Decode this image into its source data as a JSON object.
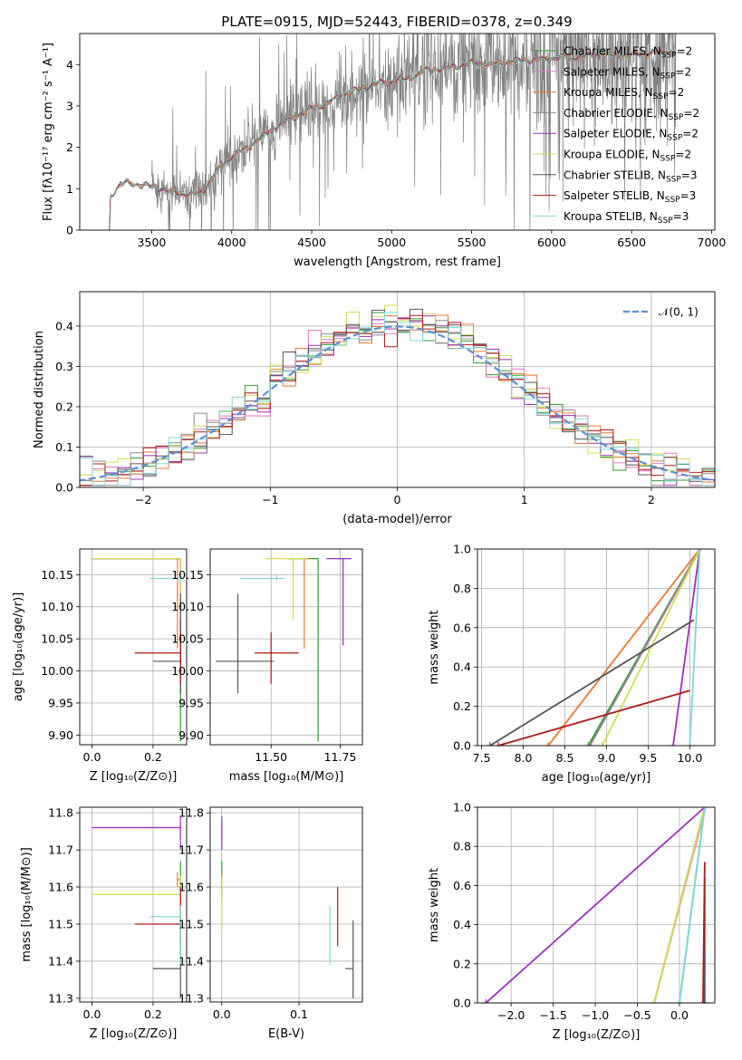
{
  "chart_data": [
    {
      "id": "spectrum",
      "type": "line",
      "title": "PLATE=0915, MJD=52443, FIBERID=0378, z=0.349",
      "xlabel": "wavelength [Angstrom, rest frame]",
      "ylabel": "Flux [fλ10⁻¹⁷ erg cm⁻² s⁻¹ A⁻¹]",
      "xlim": [
        3050,
        7020
      ],
      "ylim": [
        0,
        4.75
      ],
      "xticks": [
        3500,
        4000,
        4500,
        5000,
        5500,
        6000,
        6500,
        7000
      ],
      "yticks": [
        0,
        1,
        2,
        3,
        4
      ],
      "grid": false,
      "legend_position": "top-right",
      "data_color": "#808080",
      "data_range": [
        3500,
        6780
      ],
      "continuum": {
        "x": [
          3220,
          3290,
          3340,
          3400,
          3450,
          3500,
          3560,
          3600,
          3650,
          3700,
          3760,
          3800,
          3850,
          3900,
          3950,
          4000,
          4100,
          4200,
          4300,
          4400,
          4500,
          4600,
          4700,
          4800,
          4900,
          5000,
          5100,
          5200,
          5300,
          5400,
          5500,
          5600,
          5700,
          5800,
          5900,
          6000,
          6100,
          6200,
          6300,
          6400,
          6500,
          6600,
          6700,
          6780
        ],
        "y": [
          0.7,
          1.05,
          1.15,
          1.12,
          1.08,
          1.05,
          1.02,
          0.95,
          0.92,
          0.88,
          0.85,
          0.9,
          1.1,
          1.4,
          1.6,
          1.8,
          2.0,
          2.3,
          2.55,
          2.75,
          2.95,
          3.05,
          3.3,
          3.4,
          3.55,
          3.6,
          3.65,
          3.85,
          3.9,
          3.95,
          4.05,
          4.0,
          4.05,
          4.1,
          4.12,
          4.15,
          4.2,
          4.2,
          4.25,
          4.22,
          4.25,
          4.28,
          4.3,
          4.3
        ]
      },
      "series": [
        {
          "name": "Chabrier MILES, N",
          "sub": "SSP",
          "suffix": "=2",
          "color": "#2ca02c"
        },
        {
          "name": "Salpeter MILES, N",
          "sub": "SSP",
          "suffix": "=2",
          "color": "#e377c2"
        },
        {
          "name": "Kroupa MILES, N",
          "sub": "SSP",
          "suffix": "=2",
          "color": "#e8782e"
        },
        {
          "name": "Chabrier ELODIE, N",
          "sub": "SSP",
          "suffix": "=2",
          "color": "#8c8c8c"
        },
        {
          "name": "Salpeter ELODIE, N",
          "sub": "SSP",
          "suffix": "=2",
          "color": "#9b30b8"
        },
        {
          "name": "Kroupa ELODIE, N",
          "sub": "SSP",
          "suffix": "=2",
          "color": "#d4dc55"
        },
        {
          "name": "Chabrier STELIB, N",
          "sub": "SSP",
          "suffix": "=3",
          "color": "#555555"
        },
        {
          "name": "Salpeter STELIB, N",
          "sub": "SSP",
          "suffix": "=3",
          "color": "#b21818"
        },
        {
          "name": "Kroupa STELIB, N",
          "sub": "SSP",
          "suffix": "=3",
          "color": "#7fd8dc"
        }
      ]
    },
    {
      "id": "residuals",
      "type": "step",
      "xlabel": "(data-model)/error",
      "ylabel": "Normed distribution",
      "xlim": [
        -2.5,
        2.5
      ],
      "ylim": [
        0,
        0.485
      ],
      "xticks": [
        -2,
        -1,
        0,
        1,
        2
      ],
      "yticks": [
        0.0,
        0.1,
        0.2,
        0.3,
        0.4
      ],
      "grid": true,
      "legend_position": "top-right",
      "reference": {
        "name": "𝒩(0, 1)",
        "color": "#5b8fd8"
      },
      "bin_width": 0.1,
      "bin_start": -2.5
    },
    {
      "id": "age-vs-Z",
      "type": "errorbar",
      "xlabel": "Z [log₁₀(Z/Z⊙)]",
      "ylabel": "age  [log₁₀(age/yr)]",
      "xlim": [
        -0.04,
        0.31
      ],
      "ylim": [
        9.885,
        10.19
      ],
      "xticks": [
        0.0,
        0.2
      ],
      "yticks": [
        9.9,
        9.95,
        10.0,
        10.05,
        10.1,
        10.15
      ],
      "grid": true
    },
    {
      "id": "age-vs-mass",
      "type": "errorbar",
      "xlabel": "mass [log₁₀(M/M⊙)]",
      "ylabel": "",
      "xlim": [
        11.28,
        11.83
      ],
      "ylim": [
        9.885,
        10.19
      ],
      "xticks": [
        11.5,
        11.75
      ],
      "yticks": [
        9.9,
        9.95,
        10.0,
        10.05,
        10.1,
        10.15
      ],
      "grid": true
    },
    {
      "id": "weight-vs-age",
      "type": "line",
      "xlabel": "age  [log₁₀(age/yr)]",
      "ylabel": "mass weight",
      "xlim": [
        7.45,
        10.3
      ],
      "ylim": [
        0,
        1
      ],
      "xticks": [
        7.5,
        8.0,
        8.5,
        9.0,
        9.5,
        10.0
      ],
      "yticks": [
        0.0,
        0.2,
        0.4,
        0.6,
        0.8,
        1.0
      ],
      "grid": true
    },
    {
      "id": "mass-vs-Z",
      "type": "errorbar",
      "xlabel": "Z [log₁₀(Z/Z⊙)]",
      "ylabel": "mass [log₁₀(M/M⊙)]",
      "xlim": [
        -0.04,
        0.31
      ],
      "ylim": [
        11.29,
        11.815
      ],
      "xticks": [
        0.0,
        0.2
      ],
      "yticks": [
        11.3,
        11.4,
        11.5,
        11.6,
        11.7,
        11.8
      ],
      "grid": true
    },
    {
      "id": "mass-vs-EBV",
      "type": "errorbar",
      "xlabel": "E(B-V)",
      "ylabel": "",
      "xlim": [
        -0.015,
        0.182
      ],
      "ylim": [
        11.29,
        11.815
      ],
      "xticks": [
        0.0,
        0.1
      ],
      "yticks": [
        11.3,
        11.4,
        11.5,
        11.6,
        11.7,
        11.8
      ],
      "grid": true
    },
    {
      "id": "weight-vs-Z",
      "type": "line",
      "xlabel": "Z [log₁₀(Z/Z⊙)]",
      "ylabel": "mass weight",
      "xlim": [
        -2.4,
        0.42
      ],
      "ylim": [
        0,
        1
      ],
      "xticks": [
        -2.0,
        -1.5,
        -1.0,
        -0.5,
        0.0
      ],
      "yticks": [
        0.0,
        0.2,
        0.4,
        0.6,
        0.8,
        1.0
      ],
      "grid": true
    }
  ],
  "fits": [
    {
      "color": "#2ca02c",
      "Z": 0.29,
      "Zerr": [
        0.29,
        0.29
      ],
      "age": 10.175,
      "ageErr": [
        9.89,
        10.175
      ],
      "mass": 11.67,
      "massErr": [
        11.56,
        11.67
      ],
      "ebv": 0.0,
      "ebvErr": [
        0.0,
        0.0
      ],
      "wage": [
        [
          8.78,
          0
        ],
        [
          10.12,
          1.0
        ]
      ],
      "wZ": [
        [
          -0.0,
          0
        ],
        [
          0.3,
          1.0
        ]
      ]
    },
    {
      "color": "#e377c2",
      "Z": 0.29,
      "Zerr": [
        0.0,
        0.29
      ],
      "age": 10.175,
      "ageErr": [
        10.04,
        10.175
      ],
      "mass": 11.76,
      "massErr": [
        11.73,
        11.77
      ],
      "ebv": 0.0,
      "ebvErr": [
        0.0,
        0.0
      ],
      "wage": [
        [
          8.8,
          0
        ],
        [
          10.13,
          1.0
        ]
      ],
      "wZ": [
        [
          -0.3,
          0
        ],
        [
          0.31,
          1.0
        ]
      ]
    },
    {
      "color": "#e8782e",
      "Z": 0.28,
      "Zerr": [
        0.28,
        0.29
      ],
      "age": 10.175,
      "ageErr": [
        10.035,
        10.175
      ],
      "mass": 11.62,
      "massErr": [
        11.6,
        11.64
      ],
      "ebv": 0.0,
      "ebvErr": [
        0.0,
        0.0
      ],
      "wage": [
        [
          8.3,
          0
        ],
        [
          10.12,
          1.0
        ]
      ],
      "wZ": [
        [
          -0.3,
          0
        ],
        [
          0.3,
          1.0
        ]
      ]
    },
    {
      "color": "#8c8c8c",
      "Z": 0.29,
      "Zerr": [
        0.29,
        0.29
      ],
      "age": 10.175,
      "ageErr": [
        10.17,
        10.175
      ],
      "mass": 11.58,
      "massErr": [
        11.57,
        11.58
      ],
      "ebv": 0.0,
      "ebvErr": [
        0.0,
        0.0
      ],
      "wage": [
        [
          8.8,
          0
        ],
        [
          10.12,
          1.0
        ]
      ],
      "wZ": [
        [
          -0.3,
          0
        ],
        [
          0.3,
          1.0
        ]
      ]
    },
    {
      "color": "#9b30b8",
      "Z": 0.29,
      "Zerr": [
        0.0,
        0.29
      ],
      "age": 10.175,
      "ageErr": [
        10.04,
        10.175
      ],
      "mass": 11.76,
      "massErr": [
        11.7,
        11.79
      ],
      "ebv": 0.0,
      "ebvErr": [
        0.0,
        0.0
      ],
      "wage": [
        [
          9.8,
          0
        ],
        [
          10.12,
          1.0
        ]
      ],
      "wZ": [
        [
          -2.3,
          0
        ],
        [
          0.3,
          1.0
        ]
      ]
    },
    {
      "color": "#d4dc55",
      "Z": 0.29,
      "Zerr": [
        0.0,
        0.29
      ],
      "age": 10.175,
      "ageErr": [
        10.08,
        10.175
      ],
      "mass": 11.58,
      "massErr": [
        11.48,
        11.63
      ],
      "ebv": 0.0,
      "ebvErr": [
        0.0,
        0.0
      ],
      "wage": [
        [
          8.95,
          0
        ],
        [
          10.12,
          1.0
        ]
      ],
      "wZ": [
        [
          -0.3,
          0
        ],
        [
          0.3,
          1.0
        ]
      ]
    },
    {
      "color": "#555555",
      "Z": 0.29,
      "Zerr": [
        0.2,
        0.29
      ],
      "age": 10.015,
      "ageErr": [
        9.965,
        10.12
      ],
      "mass": 11.38,
      "massErr": [
        11.3,
        11.51
      ],
      "ebv": 0.17,
      "ebvErr": [
        0.16,
        0.17
      ],
      "wage": [
        [
          7.6,
          0
        ],
        [
          10.05,
          0.64
        ]
      ],
      "wZ": [
        [
          0.3,
          0
        ],
        [
          0.3,
          0.64
        ]
      ]
    },
    {
      "color": "#b21818",
      "Z": 0.29,
      "Zerr": [
        0.14,
        0.29
      ],
      "age": 10.028,
      "ageErr": [
        9.98,
        10.06
      ],
      "mass": 11.5,
      "massErr": [
        11.44,
        11.6
      ],
      "ebv": 0.15,
      "ebvErr": [
        0.15,
        0.15
      ],
      "wage": [
        [
          7.7,
          0
        ],
        [
          10.0,
          0.28
        ]
      ],
      "wZ": [
        [
          0.28,
          0
        ],
        [
          0.3,
          0.72
        ]
      ]
    },
    {
      "color": "#7fd8dc",
      "Z": 0.29,
      "Zerr": [
        0.19,
        0.29
      ],
      "age": 10.144,
      "ageErr": [
        10.14,
        10.15
      ],
      "mass": 11.52,
      "massErr": [
        11.39,
        11.55
      ],
      "ebv": 0.14,
      "ebvErr": [
        0.14,
        0.14
      ],
      "wage": [
        [
          10.0,
          0
        ],
        [
          10.12,
          1.0
        ]
      ],
      "wZ": [
        [
          0.0,
          0
        ],
        [
          0.3,
          1.0
        ]
      ]
    }
  ]
}
